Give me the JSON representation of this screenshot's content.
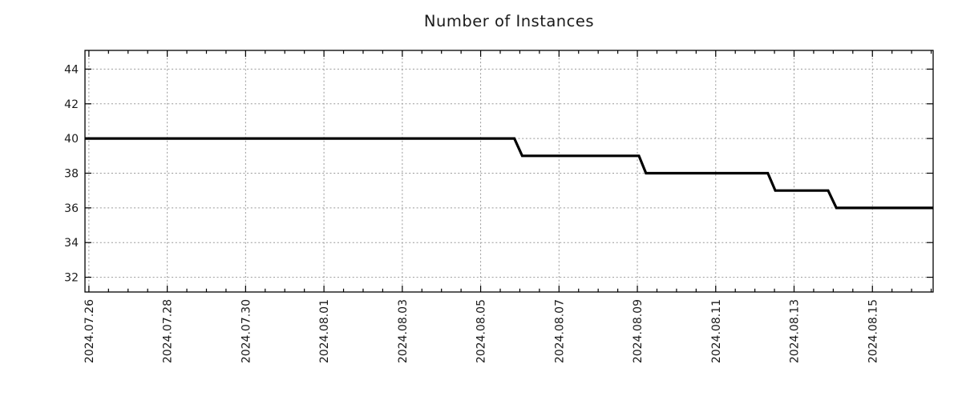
{
  "chart_data": {
    "type": "line",
    "subtype": "step",
    "title": "Number of Instances",
    "xlabel": "",
    "ylabel": "",
    "legend": "none",
    "background_color": "#ffffff",
    "border_color": "#000000",
    "text_color": "#1a1a1a",
    "grid": {
      "show": true,
      "style": "dashed",
      "color": "#999999",
      "dash": "2 2.7"
    },
    "x_axis": {
      "tick_labels": [
        "2024.07.26",
        "2024.07.28",
        "2024.07.30",
        "2024.08.01",
        "2024.08.03",
        "2024.08.05",
        "2024.08.07",
        "2024.08.09",
        "2024.08.11",
        "2024.08.13",
        "2024.08.15"
      ],
      "tick_day_offsets": [
        0,
        2,
        4,
        6,
        8,
        10,
        12,
        14,
        16,
        18,
        20
      ],
      "minor_tick_interval_days": 0.5,
      "xlim_day_offsets": [
        -0.1,
        21.55
      ],
      "label_rotation_deg": 90
    },
    "y_axis": {
      "ticks": [
        32,
        34,
        36,
        38,
        40,
        42,
        44
      ],
      "ylim": [
        31.15,
        45.08
      ]
    },
    "series": [
      {
        "name": "instances",
        "color": "#000000",
        "width": 3.2,
        "point_format": "[days_since_2024.07.26, instance_count]",
        "points": [
          [
            -0.1,
            40
          ],
          [
            10.86,
            40
          ],
          [
            11.06,
            39
          ],
          [
            14.04,
            39
          ],
          [
            14.22,
            38
          ],
          [
            17.33,
            38
          ],
          [
            17.52,
            37
          ],
          [
            18.87,
            37
          ],
          [
            19.08,
            36
          ],
          [
            21.55,
            36
          ]
        ]
      }
    ],
    "transitions": [
      {
        "date": "2024.08.06",
        "from": 40,
        "to": 39
      },
      {
        "date": "2024.08.09",
        "from": 39,
        "to": 38
      },
      {
        "date": "2024.08.12",
        "from": 38,
        "to": 37
      },
      {
        "date": "2024.08.14",
        "from": 37,
        "to": 36
      }
    ],
    "start_value": 40,
    "end_value": 36,
    "date_range": [
      "2024.07.26",
      "2024.08.16"
    ]
  }
}
